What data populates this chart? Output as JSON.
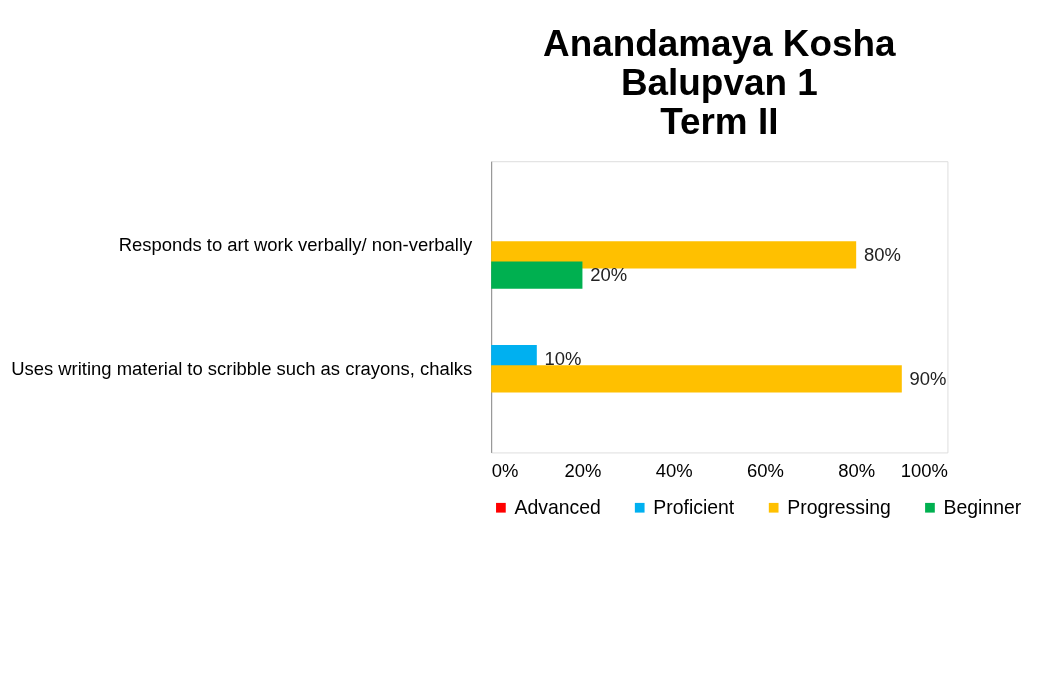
{
  "chart_data": {
    "type": "bar",
    "orientation": "horizontal",
    "title": [
      "Anandamaya Kosha",
      "Balupvan 1",
      "Term II"
    ],
    "categories": [
      "Responds to art work verbally/ non-verbally",
      "Uses writing material to scribble such as crayons, chalks"
    ],
    "series": [
      {
        "name": "Advanced",
        "color": "#ff0000",
        "values": [
          null,
          null
        ],
        "value_labels": [
          null,
          null
        ]
      },
      {
        "name": "Proficient",
        "color": "#00b0f0",
        "values": [
          null,
          10
        ],
        "value_labels": [
          null,
          "10%"
        ]
      },
      {
        "name": "Progressing",
        "color": "#ffc000",
        "values": [
          80,
          90
        ],
        "value_labels": [
          "80%",
          "90%"
        ]
      },
      {
        "name": "Beginner",
        "color": "#00b050",
        "values": [
          20,
          null
        ],
        "value_labels": [
          "20%",
          null
        ]
      }
    ],
    "xlim": [
      0,
      100
    ],
    "xticks": [
      {
        "value": 0,
        "label": "0%"
      },
      {
        "value": 20,
        "label": "20%"
      },
      {
        "value": 40,
        "label": "40%"
      },
      {
        "value": 60,
        "label": "60%"
      },
      {
        "value": 80,
        "label": "80%"
      },
      {
        "value": 100,
        "label": "100%"
      }
    ],
    "grid": false,
    "legend": "bottom"
  }
}
